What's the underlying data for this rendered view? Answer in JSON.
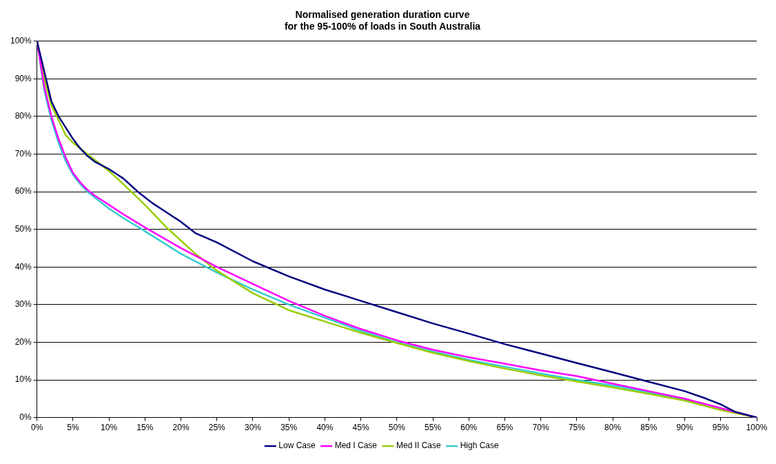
{
  "chart_data": {
    "type": "line",
    "title": "Normalised generation duration curve\nfor the 95-100% of loads in South Australia",
    "xlim": [
      0,
      100
    ],
    "xticks": [
      {
        "value": 0,
        "label": "0%"
      },
      {
        "value": 5,
        "label": "5%"
      },
      {
        "value": 10,
        "label": "10%"
      },
      {
        "value": 15,
        "label": "15%"
      },
      {
        "value": 20,
        "label": "20%"
      },
      {
        "value": 25,
        "label": "25%"
      },
      {
        "value": 30,
        "label": "30%"
      },
      {
        "value": 35,
        "label": "35%"
      },
      {
        "value": 40,
        "label": "40%"
      },
      {
        "value": 45,
        "label": "45%"
      },
      {
        "value": 50,
        "label": "50%"
      },
      {
        "value": 55,
        "label": "55%"
      },
      {
        "value": 60,
        "label": "60%"
      },
      {
        "value": 65,
        "label": "65%"
      },
      {
        "value": 70,
        "label": "70%"
      },
      {
        "value": 75,
        "label": "75%"
      },
      {
        "value": 80,
        "label": "80%"
      },
      {
        "value": 85,
        "label": "85%"
      },
      {
        "value": 90,
        "label": "90%"
      },
      {
        "value": 95,
        "label": "95%"
      },
      {
        "value": 100,
        "label": "100%"
      }
    ],
    "ylim": [
      0,
      100
    ],
    "yticks": [
      {
        "value": 0,
        "label": "0%"
      },
      {
        "value": 10,
        "label": "10%"
      },
      {
        "value": 20,
        "label": "20%"
      },
      {
        "value": 30,
        "label": "30%"
      },
      {
        "value": 40,
        "label": "40%"
      },
      {
        "value": 50,
        "label": "50%"
      },
      {
        "value": 60,
        "label": "60%"
      },
      {
        "value": 70,
        "label": "70%"
      },
      {
        "value": 80,
        "label": "80%"
      },
      {
        "value": 90,
        "label": "90%"
      },
      {
        "value": 100,
        "label": "100%"
      }
    ],
    "grid": "y",
    "legend": "bottom",
    "marker": "none",
    "line_style": "solid",
    "series": [
      {
        "name": "Low Case",
        "color": "#000080",
        "x": [
          0,
          1,
          2,
          3,
          4,
          5,
          6,
          7,
          8,
          10,
          12,
          14,
          16,
          18,
          20,
          22,
          25,
          30,
          35,
          40,
          45,
          50,
          55,
          60,
          65,
          70,
          75,
          80,
          85,
          90,
          93,
          95,
          97,
          100
        ],
        "values": [
          100,
          92,
          84,
          80,
          77,
          74,
          71.5,
          69.5,
          68,
          66,
          63.5,
          60,
          57,
          54.5,
          52,
          49,
          46.5,
          41.5,
          37.5,
          34,
          31,
          28,
          25,
          22.3,
          19.5,
          17,
          14.5,
          12,
          9.5,
          7,
          5,
          3.5,
          1.5,
          0
        ]
      },
      {
        "name": "Med I Case",
        "color": "#ff00ff",
        "x": [
          0,
          1,
          2,
          3,
          4,
          5,
          6,
          7,
          8,
          10,
          12,
          15,
          20,
          25,
          30,
          35,
          40,
          45,
          50,
          55,
          60,
          65,
          70,
          75,
          80,
          85,
          90,
          95,
          100
        ],
        "values": [
          100,
          88,
          80,
          74,
          69,
          65,
          62.5,
          60.5,
          59,
          56.5,
          54,
          50.5,
          45,
          40,
          35.5,
          31,
          27,
          23.5,
          20.5,
          18,
          16,
          14.3,
          12.5,
          11,
          9,
          7,
          5,
          2.5,
          0
        ]
      },
      {
        "name": "Med II Case",
        "color": "#99cc00",
        "x": [
          0,
          1,
          2,
          3,
          4,
          5,
          7,
          10,
          12,
          15,
          18,
          20,
          22,
          25,
          30,
          35,
          40,
          45,
          50,
          55,
          60,
          65,
          70,
          75,
          80,
          85,
          90,
          95,
          100
        ],
        "values": [
          100,
          90,
          83,
          79,
          75,
          73,
          70,
          65.5,
          62,
          56.5,
          50.5,
          47,
          43.5,
          39,
          33,
          28.5,
          25.5,
          22.5,
          19.8,
          17.2,
          15,
          13,
          11.2,
          9.6,
          8,
          6.3,
          4.5,
          2,
          0
        ]
      },
      {
        "name": "High Case",
        "color": "#33cccc",
        "x": [
          0,
          1,
          2,
          3,
          4,
          5,
          6,
          7,
          8,
          10,
          12,
          15,
          20,
          25,
          30,
          35,
          40,
          45,
          50,
          55,
          60,
          65,
          70,
          75,
          80,
          85,
          90,
          95,
          100
        ],
        "values": [
          100,
          87,
          79,
          73,
          68,
          64.5,
          62,
          60,
          58.5,
          55.5,
          53,
          49.5,
          43.5,
          38.5,
          34,
          30,
          26.5,
          23,
          20,
          17.5,
          15.3,
          13.5,
          11.7,
          10,
          8.5,
          6.7,
          4.8,
          2.5,
          0
        ]
      }
    ]
  }
}
